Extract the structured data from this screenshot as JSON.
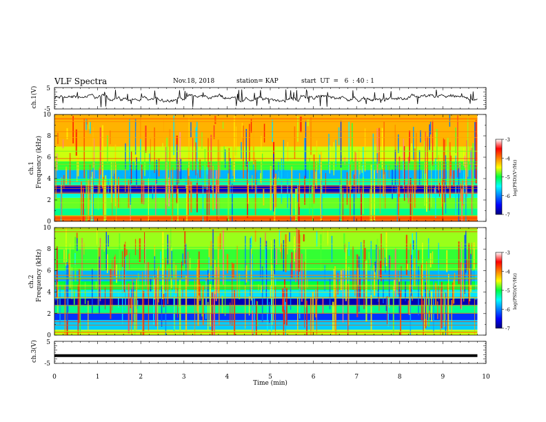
{
  "header": {
    "title": "VLF Spectra",
    "date": "Nov.18, 2018",
    "station": "station= KAP",
    "start": "start  UT  =   6  : 40 : 1"
  },
  "chart_data": [
    {
      "type": "line",
      "title": "",
      "xlabel": "",
      "ylabel": "ch.1(V)",
      "xlim": [
        0,
        10
      ],
      "ylim": [
        -5,
        5
      ],
      "yticks": [
        "5",
        "-5"
      ],
      "note": "noisy waveform between about -2.5 and 2.5 V"
    },
    {
      "type": "heatmap",
      "xlabel": "",
      "ylabel": "Frequency  (kHz)",
      "ylabel_top": "ch.1",
      "xlim": [
        0,
        10
      ],
      "ylim": [
        0,
        10
      ],
      "yticks": [
        "0",
        "2",
        "4",
        "6",
        "8",
        "10"
      ],
      "data_extent_x": [
        0,
        9.8
      ],
      "colorbar": {
        "label": "log(PSD)(V²/Hz)",
        "range": [
          -7,
          -3
        ],
        "ticks": [
          "-3",
          "-4",
          "-5",
          "-6",
          "-7"
        ]
      },
      "bands": [
        {
          "f0": 0,
          "f1": 0.5,
          "level": -3.9
        },
        {
          "f0": 0.5,
          "f1": 1.2,
          "level": -5.2
        },
        {
          "f0": 1.2,
          "f1": 2.2,
          "level": -4.8
        },
        {
          "f0": 2.2,
          "f1": 2.6,
          "level": -5.4
        },
        {
          "f0": 2.6,
          "f1": 3.4,
          "level": -6.7
        },
        {
          "f0": 3.4,
          "f1": 4.0,
          "level": -5.3
        },
        {
          "f0": 4.0,
          "f1": 4.8,
          "level": -5.8
        },
        {
          "f0": 4.8,
          "f1": 5.6,
          "level": -4.9
        },
        {
          "f0": 5.6,
          "f1": 7.0,
          "level": -4.6
        },
        {
          "f0": 7.0,
          "f1": 10.0,
          "level": -4.2
        }
      ]
    },
    {
      "type": "heatmap",
      "xlabel": "",
      "ylabel": "Frequency  (kHz)",
      "ylabel_top": "ch.2",
      "xlim": [
        0,
        10
      ],
      "ylim": [
        0,
        10
      ],
      "yticks": [
        "0",
        "2",
        "4",
        "6",
        "8",
        "10"
      ],
      "data_extent_x": [
        0,
        9.8
      ],
      "colorbar": {
        "label": "log(PSD)(V²/Hz)",
        "range": [
          -7,
          -3
        ],
        "ticks": [
          "-3",
          "-4",
          "-5",
          "-6",
          "-7"
        ]
      },
      "bands": [
        {
          "f0": 0,
          "f1": 0.5,
          "level": -4.6
        },
        {
          "f0": 0.5,
          "f1": 1.4,
          "level": -5.7
        },
        {
          "f0": 1.4,
          "f1": 2.0,
          "level": -6.3
        },
        {
          "f0": 2.0,
          "f1": 2.8,
          "level": -5.2
        },
        {
          "f0": 2.8,
          "f1": 3.4,
          "level": -6.8
        },
        {
          "f0": 3.4,
          "f1": 4.2,
          "level": -5.6
        },
        {
          "f0": 4.2,
          "f1": 5.0,
          "level": -5.0
        },
        {
          "f0": 5.0,
          "f1": 6.0,
          "level": -5.8
        },
        {
          "f0": 6.0,
          "f1": 8.0,
          "level": -4.9
        },
        {
          "f0": 8.0,
          "f1": 10.0,
          "level": -4.7
        }
      ]
    },
    {
      "type": "line",
      "xlabel": "Time  (min)",
      "ylabel": "ch.3(V)",
      "xlim": [
        0,
        10
      ],
      "ylim": [
        -5,
        5
      ],
      "yticks": [
        "5",
        "-5"
      ],
      "xticks": [
        "0",
        "1",
        "2",
        "3",
        "4",
        "5",
        "6",
        "7",
        "8",
        "9",
        "10"
      ],
      "x": [
        0,
        9.8
      ],
      "y": [
        -1.5,
        -1.5
      ]
    }
  ]
}
